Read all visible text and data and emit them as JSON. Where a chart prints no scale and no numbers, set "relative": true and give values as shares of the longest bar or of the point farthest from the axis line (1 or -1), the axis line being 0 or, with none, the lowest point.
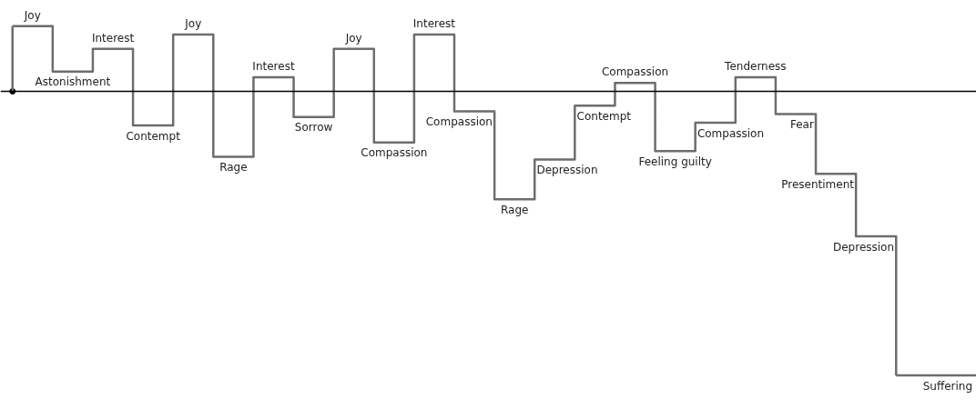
{
  "chart_data": {
    "type": "step",
    "relative": true,
    "grid": false,
    "color": "#6d6d6d",
    "categories": [
      null,
      null,
      null,
      null,
      null,
      null,
      null,
      null,
      null,
      null,
      null,
      null,
      null,
      null,
      null,
      null,
      null,
      null,
      null,
      null,
      null,
      null,
      null
    ],
    "annotations": [
      "Joy",
      "Astonishment",
      "Interest",
      "Contempt",
      "Joy",
      "Rage",
      "Interest",
      "Sorrow",
      "Joy",
      "Compassion",
      "Interest",
      "Compassion",
      "Rage",
      "Depression",
      "Contempt",
      "Compassion",
      "Feeling guilty",
      "Compassion",
      "Tenderness",
      "Fear",
      "Presentiment",
      "Depression",
      "Suffering"
    ],
    "values": [
      0.23,
      0.07,
      0.15,
      -0.12,
      0.2,
      -0.23,
      0.05,
      -0.09,
      0.15,
      -0.18,
      0.2,
      -0.07,
      -0.38,
      -0.24,
      -0.05,
      0.03,
      -0.21,
      -0.11,
      0.05,
      -0.08,
      -0.29,
      -0.51,
      -1
    ]
  }
}
